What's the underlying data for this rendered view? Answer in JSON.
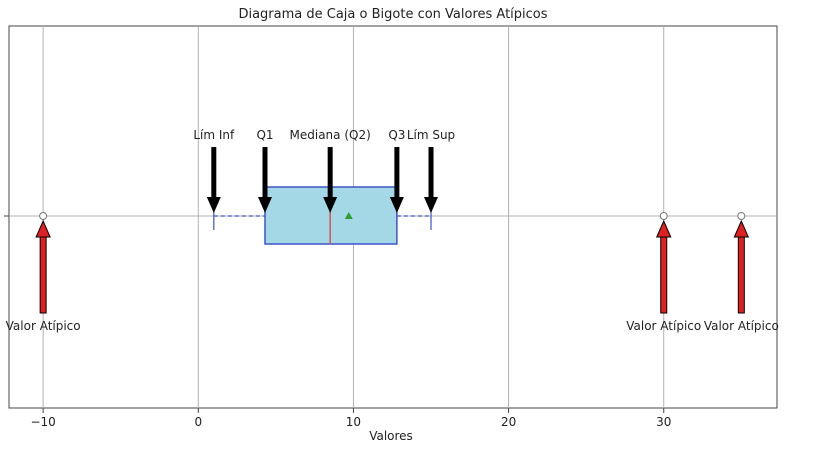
{
  "chart_data": {
    "type": "boxplot",
    "title": "Diagrama de Caja o Bigote con Valores Atípicos",
    "xlabel": "Valores",
    "ylabel": "",
    "xlim": [
      -12.2,
      37.3
    ],
    "x_ticks": [
      -10,
      0,
      10,
      20,
      30
    ],
    "x_tick_labels": [
      "−10",
      "0",
      "10",
      "20",
      "30"
    ],
    "grid": true,
    "box": {
      "whisker_low": 1.0,
      "q1": 4.3,
      "median": 8.5,
      "q3": 12.8,
      "whisker_high": 15.0,
      "mean": 9.7,
      "outliers": [
        -10,
        30,
        35
      ]
    },
    "annotations_down": [
      {
        "label": "Lím Inf",
        "x": 1.0
      },
      {
        "label": "Q1",
        "x": 4.3
      },
      {
        "label": "Mediana (Q2)",
        "x": 8.5
      },
      {
        "label": "Q3",
        "x": 12.8
      },
      {
        "label": "Lím Sup",
        "x": 15.0
      }
    ],
    "annotations_up": [
      {
        "label": "Valor Atípico",
        "x": -10
      },
      {
        "label": "Valor Atípico",
        "x": 30
      },
      {
        "label": "Valor Atípico",
        "x": 35
      }
    ],
    "colors": {
      "box_fill": "#a4d8e6",
      "box_edge": "#3b55c8",
      "median": "#d9534f",
      "mean_marker": "#2ca02c",
      "whisker": "#3b55c8",
      "down_arrow": "#000000",
      "up_arrow": "#e02020",
      "grid": "#b0b0b0"
    }
  }
}
